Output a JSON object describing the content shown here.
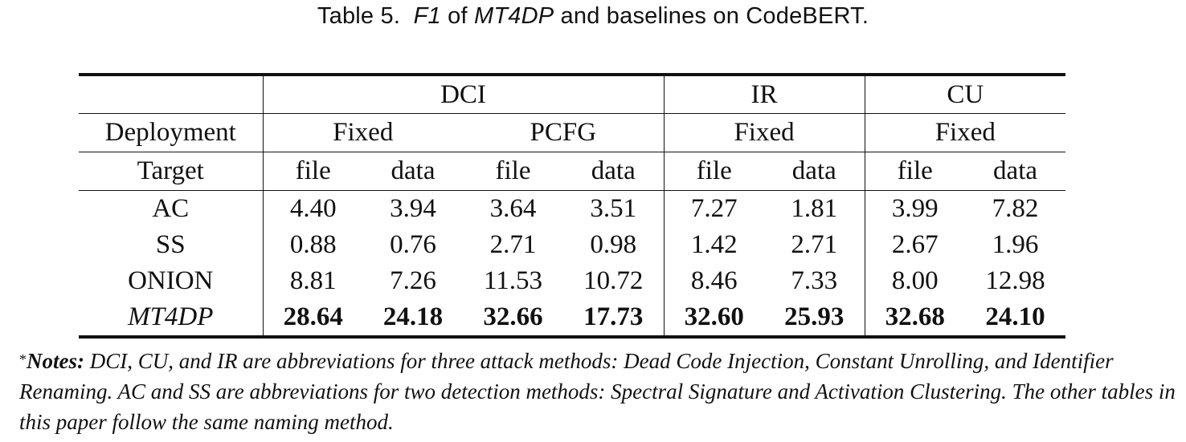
{
  "caption": {
    "prefix": "Table 5.",
    "metric": "F1",
    "of": "of",
    "model": "MT4DP",
    "suffix": "and baselines on CodeBERT."
  },
  "table": {
    "header_attack": [
      "DCI",
      "IR",
      "CU"
    ],
    "deployment_label": "Deployment",
    "deployments": [
      "Fixed",
      "PCFG",
      "Fixed",
      "Fixed"
    ],
    "target_label": "Target",
    "targets": [
      "file",
      "data",
      "file",
      "data",
      "file",
      "data",
      "file",
      "data"
    ],
    "rows": [
      {
        "method": "AC",
        "values": [
          "4.40",
          "3.94",
          "3.64",
          "3.51",
          "7.27",
          "1.81",
          "3.99",
          "7.82"
        ]
      },
      {
        "method": "SS",
        "values": [
          "0.88",
          "0.76",
          "2.71",
          "0.98",
          "1.42",
          "2.71",
          "2.67",
          "1.96"
        ]
      },
      {
        "method": "ONION",
        "values": [
          "8.81",
          "7.26",
          "11.53",
          "10.72",
          "8.46",
          "7.33",
          "8.00",
          "12.98"
        ]
      },
      {
        "method": "MT4DP",
        "values": [
          "28.64",
          "24.18",
          "32.66",
          "17.73",
          "32.60",
          "25.93",
          "32.68",
          "24.10"
        ]
      }
    ]
  },
  "notes": {
    "marker": "*",
    "label": "Notes:",
    "text": "DCI, CU, and IR are abbreviations for three attack methods: Dead Code Injection, Constant Unrolling, and Identifier Renaming. AC and SS are abbreviations for two detection methods: Spectral Signature and Activation Clustering. The other tables in this paper follow the same naming method."
  }
}
